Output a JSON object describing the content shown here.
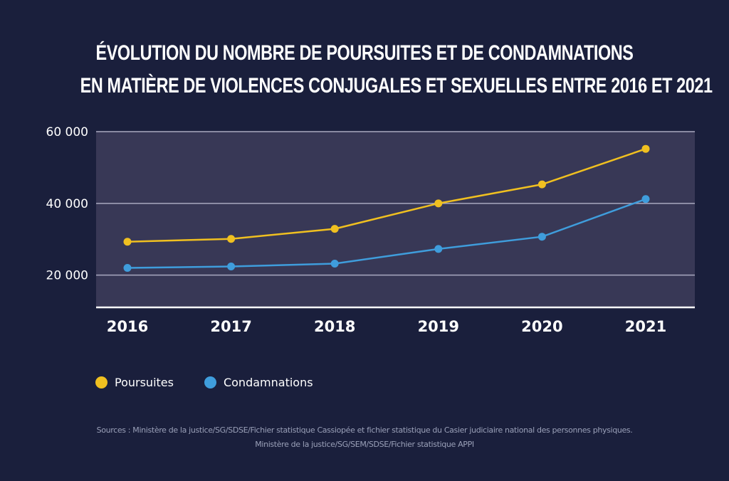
{
  "chart_data": {
    "type": "line",
    "title_lines": [
      "ÉVOLUTION DU NOMBRE DE POURSUITES ET DE CONDAMNATIONS",
      "EN MATIÈRE DE VIOLENCES CONJUGALES ET SEXUELLES ENTRE 2016 ET 2021"
    ],
    "categories": [
      "2016",
      "2017",
      "2018",
      "2019",
      "2020",
      "2021"
    ],
    "series": [
      {
        "name": "Poursuites",
        "color": "#f0c020",
        "values": [
          29300,
          30100,
          32900,
          40000,
          45300,
          55200
        ]
      },
      {
        "name": "Condamnations",
        "color": "#3f9ddc",
        "values": [
          22000,
          22400,
          23200,
          27300,
          30700,
          41200
        ]
      }
    ],
    "yticks": [
      {
        "value": 20000,
        "label": "20 000"
      },
      {
        "value": 40000,
        "label": "40 000"
      },
      {
        "value": 60000,
        "label": "60 000"
      }
    ],
    "ylim": [
      11000,
      60000
    ],
    "xlabel": "",
    "ylabel": "",
    "grid": true,
    "legend_position": "bottom-left",
    "colors": {
      "background": "#1a1f3c",
      "plot_background": "#383856",
      "gridline": "#a9a9c0",
      "axis": "#ffffff"
    }
  },
  "sources": [
    "Sources : Ministère de la justice/SG/SDSE/Fichier statistique Cassiopée et fichier statistique du Casier judiciaire national des personnes physiques.",
    "Ministère de la justice/SG/SEM/SDSE/Fichier statistique APPI"
  ]
}
